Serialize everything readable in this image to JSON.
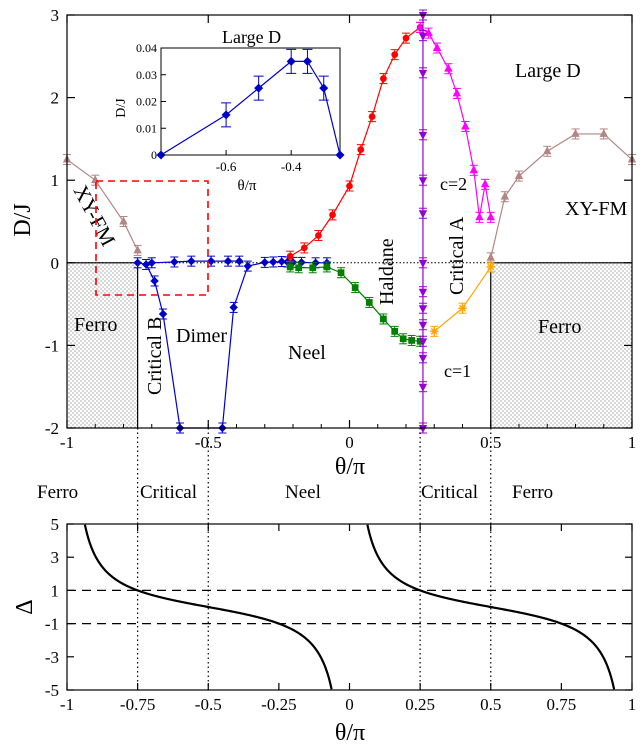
{
  "chart_data": [
    {
      "panel": "top",
      "type": "line",
      "xlabel": "θ/π",
      "ylabel": "D/J",
      "xlim": [
        -1,
        1
      ],
      "ylim": [
        -2,
        3
      ],
      "xticks": [
        "-1",
        "-0.5",
        "0",
        "0.5",
        "1"
      ],
      "yticks": [
        "-2",
        "-1",
        "0",
        "1",
        "2",
        "3"
      ],
      "regions": {
        "ferro_left": {
          "label": "Ferro",
          "x": [
            -1,
            -0.75
          ],
          "y": [
            -2,
            0
          ]
        },
        "ferro_right": {
          "label": "Ferro",
          "x": [
            0.5,
            1
          ],
          "y": [
            -2,
            0
          ]
        }
      },
      "phase_labels": {
        "xy_fm_left": "XY-FM",
        "xy_fm_right": "XY-FM",
        "critical_b": "Critical B",
        "dimer": "Dimer",
        "neel": "Neel",
        "haldane": "Haldane",
        "critical_a": "Critical A",
        "large_d": "Large D",
        "c2": "c=2",
        "c1": "c=1"
      },
      "series": [
        {
          "color": "#b38585",
          "marker": "triangle-up",
          "x": [
            -1.0,
            -0.9,
            -0.8,
            -0.75
          ],
          "y": [
            1.25,
            1.0,
            0.5,
            0.15
          ]
        },
        {
          "color": "#b38585",
          "marker": "triangle-up",
          "x": [
            0.5,
            0.55,
            0.6,
            0.7,
            0.8,
            0.9,
            1.0
          ],
          "y": [
            0.06,
            0.8,
            1.05,
            1.35,
            1.56,
            1.56,
            1.25
          ]
        },
        {
          "color": "#0000cc",
          "marker": "diamond",
          "x": [
            -0.75,
            -0.72,
            -0.69,
            -0.66,
            -0.6,
            -0.45,
            -0.41,
            -0.36,
            -0.3,
            -0.27,
            -0.24,
            -0.22,
            -0.2,
            -0.17,
            -0.12,
            -0.08
          ],
          "y": [
            0.0,
            -0.02,
            -0.22,
            -0.62,
            -2.0,
            -2.0,
            -0.54,
            -0.04,
            0.005,
            0.01,
            0.015,
            0.01,
            0.005,
            0.005,
            0.0,
            0.0
          ]
        },
        {
          "color": "#0000cc",
          "marker": "diamond",
          "x": [
            -0.7,
            -0.62,
            -0.56,
            -0.49,
            -0.43,
            -0.39
          ],
          "y": [
            0.0,
            0.01,
            0.02,
            0.02,
            0.02,
            0.02
          ]
        },
        {
          "color": "#ff0000",
          "marker": "circle",
          "x": [
            -0.21,
            -0.16,
            -0.11,
            -0.06,
            0.0,
            0.04,
            0.08,
            0.12,
            0.16,
            0.2,
            0.25
          ],
          "y": [
            0.08,
            0.18,
            0.33,
            0.58,
            0.93,
            1.37,
            1.77,
            2.23,
            2.52,
            2.72,
            2.85
          ]
        },
        {
          "color": "#008000",
          "marker": "square",
          "x": [
            -0.21,
            -0.18,
            -0.13,
            -0.08,
            -0.03,
            0.02,
            0.07,
            0.12,
            0.16,
            0.19,
            0.22,
            0.25
          ],
          "y": [
            -0.05,
            -0.06,
            -0.06,
            -0.05,
            -0.12,
            -0.3,
            -0.48,
            -0.68,
            -0.83,
            -0.92,
            -0.94,
            -0.95
          ]
        },
        {
          "color": "#ff00ff",
          "marker": "triangle-up",
          "x": [
            0.25,
            0.28,
            0.31,
            0.35,
            0.38,
            0.41,
            0.44,
            0.46,
            0.48,
            0.5
          ],
          "y": [
            2.85,
            2.78,
            2.6,
            2.35,
            2.05,
            1.65,
            1.12,
            0.55,
            0.95,
            0.55
          ]
        },
        {
          "color": "#ffa500",
          "marker": "star",
          "x": [
            0.3,
            0.4,
            0.5
          ],
          "y": [
            -0.83,
            -0.55,
            -0.05
          ]
        },
        {
          "color": "#9400d3",
          "marker": "triangle-down",
          "x": [
            0.26,
            0.26,
            0.26,
            0.26,
            0.26,
            0.26,
            0.26,
            0.26,
            0.26,
            0.26,
            0.26,
            0.26,
            0.26,
            0.26
          ],
          "y": [
            2.75,
            2.3,
            1.55,
            1.0,
            0.6,
            0.0,
            -0.35,
            -0.55,
            -0.75,
            -0.95,
            -1.15,
            -1.5,
            -2.0,
            3.0
          ]
        }
      ],
      "inset": {
        "title": "Large D",
        "xlabel": "θ/π",
        "ylabel": "D/J",
        "xlim": [
          -0.8,
          -0.25
        ],
        "ylim": [
          0,
          0.04
        ],
        "xticks": [
          "-0.6",
          "-0.4"
        ],
        "yticks": [
          "0",
          "0.01",
          "0.02",
          "0.03",
          "0.04"
        ],
        "color": "#0000cc",
        "x": [
          -0.8,
          -0.6,
          -0.5,
          -0.4,
          -0.35,
          -0.3,
          -0.25
        ],
        "y": [
          0.0,
          0.015,
          0.025,
          0.035,
          0.035,
          0.025,
          0.0
        ]
      }
    },
    {
      "panel": "bottom",
      "type": "line",
      "xlabel": "θ/π",
      "ylabel": "Δ",
      "xlim": [
        -1,
        1
      ],
      "ylim": [
        -5,
        5
      ],
      "xticks": [
        "-1",
        "-0.75",
        "-0.5",
        "-0.25",
        "0",
        "0.25",
        "0.5",
        "0.75",
        "1"
      ],
      "yticks": [
        "-5",
        "-3",
        "-1",
        "1",
        "3",
        "5"
      ],
      "phase_labels": [
        "Ferro",
        "Critical",
        "Neel",
        "Critical",
        "Ferro"
      ],
      "function": "Delta = 1/tan(theta·π)",
      "dashed_lines_y": [
        1,
        -1
      ],
      "dotted_lines_x": [
        -0.75,
        -0.5,
        0.25,
        0.5
      ]
    }
  ]
}
